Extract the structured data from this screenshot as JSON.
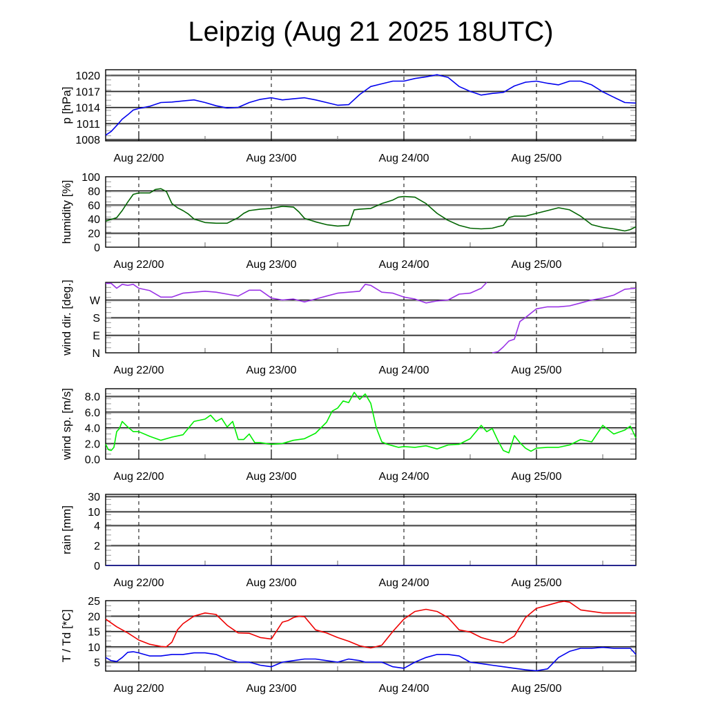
{
  "chart_data": {
    "title": "Leipzig (Aug 21 2025 18UTC)",
    "x_unit": "hours since Aug 21 2025 18UTC",
    "xlim": [
      0,
      96
    ],
    "x_tick_hours": [
      6,
      30,
      54,
      78
    ],
    "x_tick_labels": [
      "Aug 22/00",
      "Aug 23/00",
      "Aug 24/00",
      "Aug 25/00"
    ],
    "panels": [
      {
        "id": "pressure",
        "type": "line",
        "ylabel": "p [hPa]",
        "ylim": [
          1008,
          1021
        ],
        "y_ticks": [
          1008,
          1011,
          1014,
          1017,
          1020
        ],
        "y_tick_labels": [
          "1008",
          "1011",
          "1014",
          "1017",
          "1020"
        ],
        "series": [
          {
            "name": "p",
            "color": "#0000ee",
            "x": [
              0,
              1,
              2,
              3,
              4,
              5,
              6,
              8,
              10,
              12,
              14,
              16,
              18,
              20,
              22,
              24,
              26,
              28,
              30,
              32,
              34,
              36,
              38,
              40,
              42,
              44,
              46,
              48,
              50,
              52,
              54,
              56,
              58,
              60,
              62,
              64,
              66,
              68,
              70,
              72,
              74,
              76,
              78,
              80,
              82,
              84,
              86,
              88,
              90,
              92,
              94,
              96
            ],
            "values": [
              1008.8,
              1009.5,
              1010.6,
              1011.8,
              1012.6,
              1013.5,
              1013.8,
              1014.2,
              1014.9,
              1015.0,
              1015.2,
              1015.4,
              1014.9,
              1014.3,
              1013.9,
              1014.0,
              1014.9,
              1015.5,
              1015.8,
              1015.4,
              1015.6,
              1015.8,
              1015.4,
              1014.9,
              1014.4,
              1014.5,
              1016.4,
              1017.9,
              1018.4,
              1018.9,
              1018.9,
              1019.4,
              1019.7,
              1020.1,
              1019.6,
              1017.9,
              1017.0,
              1016.3,
              1016.6,
              1016.8,
              1018.0,
              1018.7,
              1018.9,
              1018.5,
              1018.2,
              1018.9,
              1018.9,
              1018.2,
              1016.9,
              1015.9,
              1014.9,
              1014.8
            ]
          }
        ]
      },
      {
        "id": "humidity",
        "type": "line",
        "ylabel": "humidity [%]",
        "ylim": [
          0,
          100
        ],
        "y_ticks": [
          0,
          20,
          40,
          60,
          80,
          100
        ],
        "y_tick_labels": [
          "0",
          "20",
          "40",
          "60",
          "80",
          "100"
        ],
        "series": [
          {
            "name": "RH",
            "color": "#006400",
            "x": [
              0,
              2,
              3,
              4,
              5,
              6,
              8,
              9,
              10,
              11,
              12,
              13,
              14,
              15,
              16,
              18,
              20,
              22,
              24,
              25,
              26,
              28,
              30,
              32,
              34,
              35,
              36,
              38,
              40,
              42,
              44,
              45,
              46,
              48,
              50,
              52,
              53,
              54,
              56,
              58,
              60,
              62,
              64,
              66,
              68,
              70,
              71,
              72,
              73,
              74,
              76,
              78,
              80,
              82,
              84,
              86,
              88,
              90,
              92,
              94,
              95,
              96
            ],
            "values": [
              37,
              42,
              52,
              64,
              75,
              77,
              77,
              82,
              83,
              79,
              62,
              56,
              52,
              47,
              40,
              35,
              34,
              34,
              42,
              48,
              52,
              54,
              55,
              58,
              57,
              50,
              41,
              36,
              32,
              30,
              31,
              53,
              54,
              55,
              62,
              67,
              71,
              72,
              71,
              62,
              48,
              38,
              31,
              27,
              26,
              27,
              29,
              31,
              42,
              44,
              44,
              48,
              52,
              56,
              53,
              44,
              32,
              28,
              26,
              23,
              25,
              29
            ]
          }
        ]
      },
      {
        "id": "wind_direction",
        "type": "line",
        "ylabel": "wind dir. [deg.]",
        "ylim": [
          0,
          360
        ],
        "y_ticks": [
          0,
          90,
          180,
          270
        ],
        "y_tick_labels": [
          "N",
          "E",
          "S",
          "W"
        ],
        "series": [
          {
            "name": "dd",
            "color": "#9932e6",
            "x": [
              0,
              1,
              2,
              3,
              4,
              5,
              6,
              8,
              10,
              12,
              14,
              16,
              18,
              20,
              22,
              24,
              26,
              28,
              30,
              32,
              34,
              36,
              38,
              40,
              42,
              44,
              46,
              47,
              48,
              50,
              52,
              54,
              56,
              58,
              60,
              62,
              64,
              66,
              68,
              69
            ],
            "values": [
              355,
              355,
              330,
              350,
              345,
              350,
              330,
              318,
              285,
              285,
              305,
              310,
              315,
              310,
              300,
              290,
              320,
              320,
              280,
              270,
              275,
              260,
              275,
              290,
              305,
              310,
              315,
              350,
              345,
              310,
              305,
              285,
              275,
              255,
              265,
              270,
              300,
              305,
              330,
              360
            ]
          },
          {
            "name": "dd_wrapped",
            "color": "#9932e6",
            "x": [
              70,
              71,
              72,
              73,
              74,
              75,
              76,
              78,
              80,
              82,
              84,
              86,
              88,
              90,
              92,
              94,
              96
            ],
            "values": [
              0,
              5,
              30,
              60,
              70,
              160,
              180,
              225,
              235,
              235,
              240,
              255,
              270,
              280,
              295,
              325,
              330
            ]
          }
        ]
      },
      {
        "id": "wind_speed",
        "type": "line",
        "ylabel": "wind sp. [m/s]",
        "ylim": [
          0,
          9
        ],
        "y_ticks": [
          0,
          2,
          4,
          6,
          8
        ],
        "y_tick_labels": [
          "0.0",
          "2.0",
          "4.0",
          "6.0",
          "8.0"
        ],
        "series": [
          {
            "name": "ff",
            "color": "#00ee00",
            "x": [
              0,
              0.5,
              1,
              1.5,
              2,
              2.5,
              3,
              4,
              5,
              6,
              8,
              10,
              12,
              14,
              16,
              18,
              19,
              20,
              21,
              22,
              23,
              24,
              25,
              26,
              27,
              28,
              30,
              32,
              34,
              36,
              38,
              40,
              41,
              42,
              43,
              44,
              45,
              46,
              47,
              48,
              49,
              50,
              51,
              52,
              53,
              54,
              56,
              58,
              60,
              62,
              64,
              66,
              68,
              69,
              70,
              71,
              72,
              73,
              74,
              75,
              76,
              77,
              78,
              80,
              82,
              84,
              86,
              88,
              90,
              92,
              94,
              95,
              96
            ],
            "values": [
              1.9,
              1.2,
              1.1,
              1.5,
              3.5,
              3.9,
              4.8,
              4.1,
              3.5,
              3.5,
              2.9,
              2.4,
              2.8,
              3.1,
              4.8,
              5.1,
              5.6,
              4.8,
              5.2,
              4.1,
              4.8,
              2.5,
              2.5,
              3.2,
              2.1,
              2.1,
              1.9,
              2.0,
              2.4,
              2.6,
              3.3,
              4.7,
              6.1,
              6.5,
              7.4,
              7.2,
              8.5,
              7.6,
              8.3,
              7.1,
              4.0,
              2.2,
              1.9,
              1.7,
              1.5,
              1.6,
              1.5,
              1.7,
              1.3,
              1.8,
              1.9,
              2.6,
              4.3,
              3.5,
              3.9,
              2.4,
              1.1,
              0.8,
              3.0,
              2.1,
              1.4,
              1.0,
              1.4,
              1.5,
              1.5,
              1.8,
              2.5,
              2.2,
              4.3,
              3.2,
              3.7,
              4.2,
              2.7
            ]
          }
        ]
      },
      {
        "id": "rain",
        "type": "line",
        "ylabel": "rain [mm]",
        "ylim": [
          0,
          30
        ],
        "y_ticks": [
          0,
          2,
          4,
          10,
          30
        ],
        "y_tick_labels": [
          "0",
          "2",
          "4",
          "10",
          "30"
        ],
        "series": [
          {
            "name": "rain",
            "color": "#00008b",
            "x": [
              0,
              96
            ],
            "values": [
              0,
              0
            ]
          }
        ]
      },
      {
        "id": "temperature",
        "type": "line",
        "ylabel": "T / Td [*C]",
        "ylim": [
          2,
          25
        ],
        "y_ticks": [
          5,
          10,
          15,
          20,
          25
        ],
        "y_tick_labels": [
          "5",
          "10",
          "15",
          "20",
          "25"
        ],
        "series": [
          {
            "name": "T",
            "color": "#ee0000",
            "x": [
              0,
              2,
              4,
              6,
              8,
              10,
              11,
              12,
              13,
              14,
              16,
              18,
              20,
              22,
              24,
              26,
              28,
              30,
              32,
              33,
              34,
              35,
              36,
              38,
              40,
              42,
              44,
              46,
              48,
              50,
              52,
              54,
              56,
              58,
              60,
              62,
              64,
              66,
              68,
              70,
              72,
              74,
              76,
              78,
              80,
              82,
              83,
              84,
              86,
              88,
              90,
              92,
              94,
              95,
              96
            ],
            "values": [
              19,
              16.5,
              14.5,
              12.2,
              10.8,
              10.1,
              10.0,
              11.5,
              15.5,
              17.5,
              20.0,
              21.0,
              20.5,
              17.0,
              14.5,
              14.4,
              13.0,
              12.5,
              18.0,
              18.5,
              19.5,
              20.0,
              19.8,
              15.5,
              14.5,
              13.0,
              11.8,
              10.3,
              9.6,
              10.5,
              15.0,
              19.0,
              21.5,
              22.2,
              21.5,
              19.5,
              15.5,
              14.8,
              13.0,
              12.0,
              11.3,
              13.5,
              19.5,
              22.5,
              23.5,
              24.5,
              24.8,
              24.5,
              22.0,
              21.5,
              21.0,
              21.0,
              21.0,
              21.0,
              21.0
            ]
          },
          {
            "name": "Td",
            "color": "#0000ee",
            "x": [
              0,
              1,
              2,
              3,
              4,
              5,
              6,
              8,
              10,
              12,
              14,
              16,
              18,
              20,
              22,
              24,
              26,
              28,
              30,
              32,
              34,
              36,
              38,
              40,
              42,
              44,
              46,
              47,
              48,
              50,
              52,
              54,
              56,
              58,
              60,
              62,
              64,
              66,
              68,
              70,
              72,
              74,
              76,
              78,
              80,
              82,
              84,
              86,
              88,
              90,
              92,
              94,
              95,
              96
            ],
            "values": [
              6.5,
              5.5,
              5.2,
              6.5,
              8.2,
              8.4,
              8.0,
              7.0,
              7.0,
              7.5,
              7.5,
              8.0,
              8.0,
              7.5,
              6.0,
              5.0,
              5.0,
              4.0,
              3.5,
              5.0,
              5.5,
              6.0,
              6.0,
              5.5,
              5.0,
              6.0,
              5.5,
              5.0,
              5.0,
              5.0,
              3.5,
              3.0,
              5.0,
              6.5,
              7.5,
              7.5,
              7.0,
              5.0,
              4.5,
              4.0,
              3.5,
              3.0,
              2.5,
              2.2,
              2.8,
              6.5,
              8.5,
              9.5,
              9.5,
              9.8,
              9.5,
              9.5,
              9.5,
              7.5
            ]
          }
        ]
      }
    ]
  }
}
